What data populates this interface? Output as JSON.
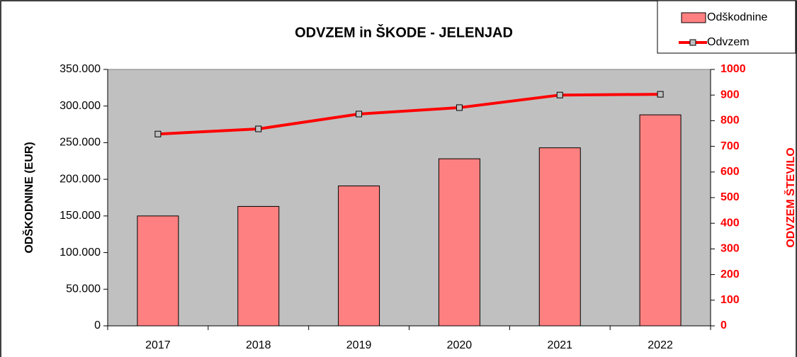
{
  "chart_data": {
    "type": "bar_line",
    "title": "ODVZEM in ŠKODE - JELENJAD",
    "categories": [
      "2017",
      "2018",
      "2019",
      "2020",
      "2021",
      "2022"
    ],
    "series": [
      {
        "name": "Odškodnine",
        "type": "bar",
        "color": "#ff8080",
        "values": [
          150000,
          163000,
          191000,
          228000,
          243000,
          288000
        ]
      },
      {
        "name": "Odvzem",
        "type": "line",
        "color": "#ff0000",
        "axis": "y2",
        "values": [
          748,
          768,
          826,
          851,
          900,
          903
        ]
      }
    ],
    "ylabel": "ODŠKODNINE (EUR)",
    "y2label": "ODVZEM ŠTEVILO",
    "ylim": [
      0,
      350000
    ],
    "yticks": [
      0,
      {
        "value": 50000,
        "label": "50.000"
      },
      {
        "value": 100000,
        "label": "100.000"
      },
      {
        "value": 150000,
        "label": "150.000"
      },
      {
        "value": 200000,
        "label": "200.000"
      },
      {
        "value": 250000,
        "label": "250.000"
      },
      {
        "value": 300000,
        "label": "300.000"
      },
      {
        "value": 350000,
        "label": "350.000"
      }
    ],
    "y2lim": [
      0,
      1000
    ],
    "y2ticks": [
      0,
      100,
      200,
      300,
      400,
      500,
      600,
      700,
      800,
      900,
      1000
    ],
    "y2color": "#ff0000",
    "plot_background": "#c0c0c0",
    "legend": "upper right"
  }
}
